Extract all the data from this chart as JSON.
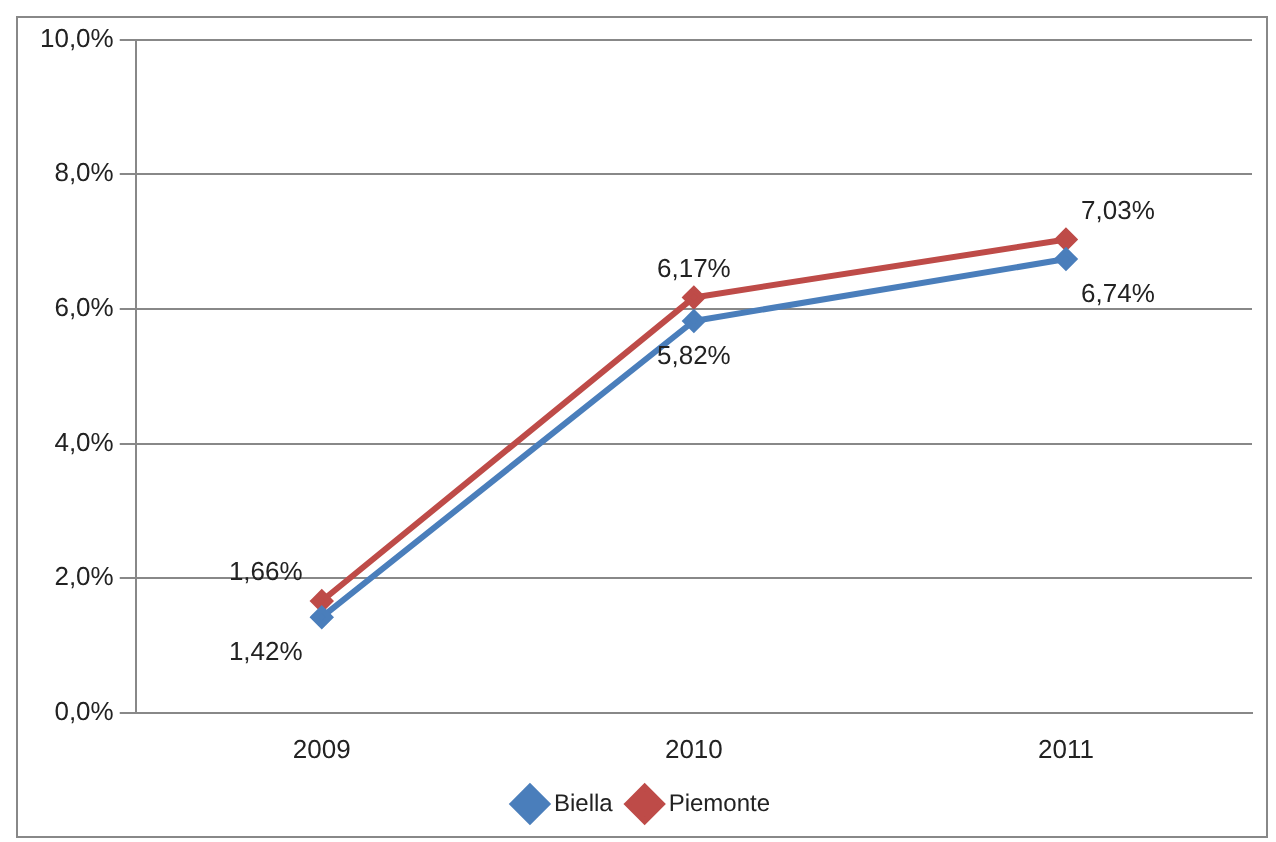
{
  "chart_data": {
    "type": "line",
    "categories": [
      "2009",
      "2010",
      "2011"
    ],
    "series": [
      {
        "name": "Biella",
        "color": "#4a7ebb",
        "values": [
          1.42,
          5.82,
          6.74
        ],
        "value_labels": [
          "1,42%",
          "5,82%",
          "6,74%"
        ]
      },
      {
        "name": "Piemonte",
        "color": "#be4b48",
        "values": [
          1.66,
          6.17,
          7.03
        ],
        "value_labels": [
          "1,66%",
          "6,17%",
          "7,03%"
        ]
      }
    ],
    "ylim": [
      0,
      10
    ],
    "yticks": [
      {
        "value": 0,
        "label": "0,0%"
      },
      {
        "value": 2,
        "label": "2,0%"
      },
      {
        "value": 4,
        "label": "4,0%"
      },
      {
        "value": 6,
        "label": "6,0%"
      },
      {
        "value": 8,
        "label": "8,0%"
      },
      {
        "value": 10,
        "label": "10,0%"
      }
    ],
    "grid": "y",
    "legend": "bottom",
    "marker": "diamond",
    "line_style": "solid"
  }
}
